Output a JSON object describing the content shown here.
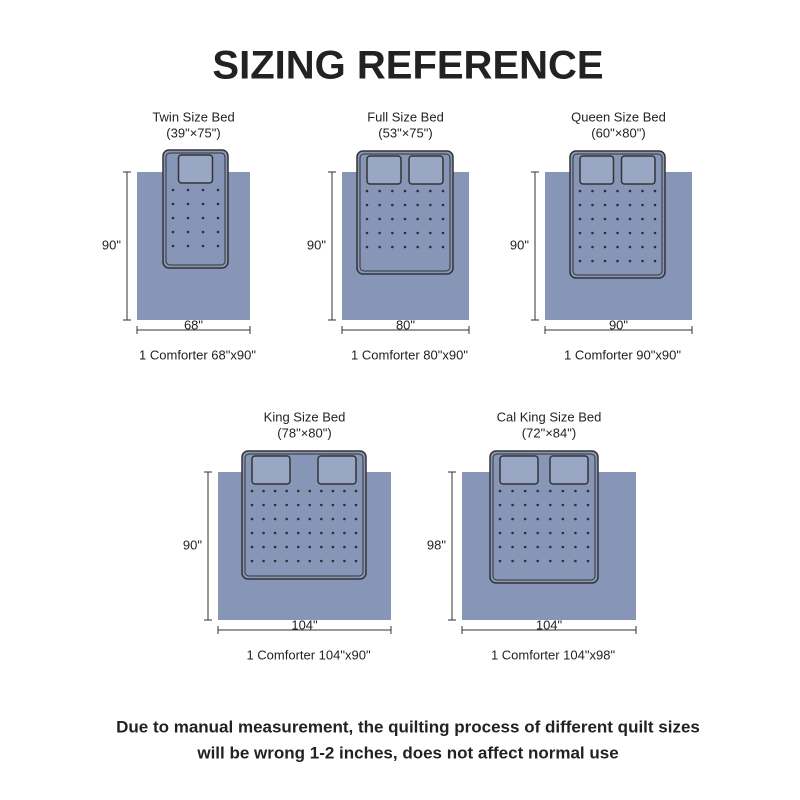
{
  "header": {
    "title": "SIZING REFERENCE"
  },
  "panels": [
    {
      "name": "Twin Size Bed",
      "size": "(39\"×75\")",
      "height": "90\"",
      "width": "68\"",
      "caption": "1 Comforter 68\"x90\""
    },
    {
      "name": "Full Size Bed",
      "size": "(53\"×75\")",
      "height": "90\"",
      "width": "80\"",
      "caption": "1 Comforter 80\"x90\""
    },
    {
      "name": "Queen Size Bed",
      "size": "(60\"×80\")",
      "height": "90\"",
      "width": "90\"",
      "caption": "1 Comforter 90\"x90\""
    },
    {
      "name": "King Size Bed",
      "size": "(78\"×80\")",
      "height": "90\"",
      "width": "104\"",
      "caption": "1 Comforter 104\"x90\""
    },
    {
      "name": "Cal King Size Bed",
      "size": "(72\"×84\")",
      "height": "98\"",
      "width": "104\"",
      "caption": "1 Comforter 104\"x98\""
    }
  ],
  "footer": {
    "lines": [
      "Due to manual measurement, the quilting process of different quilt sizes",
      "will be wrong 1-2 inches, does not affect normal use"
    ]
  }
}
